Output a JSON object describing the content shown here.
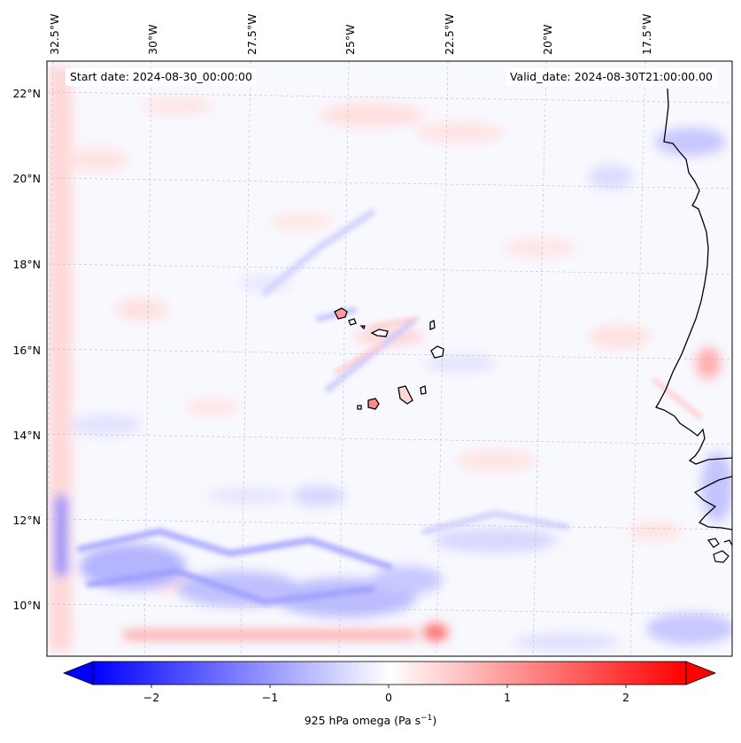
{
  "map": {
    "start_date": "Start date: 2024-08-30_00:00:00",
    "valid_date": "Valid_date: 2024-08-30T21:00:00.00",
    "lon_labels": [
      "32.5°W",
      "30°W",
      "27.5°W",
      "25°W",
      "22.5°W",
      "20°W",
      "17.5°W"
    ],
    "lat_labels": [
      "22°N",
      "20°N",
      "18°N",
      "16°N",
      "14°N",
      "12°N",
      "10°N"
    ],
    "field": "925 hPa omega",
    "colormap": "bwr",
    "colors": {
      "negative": "#0000ff",
      "neutral": "#ffffff",
      "positive": "#ff0000"
    }
  },
  "colorbar": {
    "ticks": [
      "−2",
      "−1",
      "0",
      "1",
      "2"
    ],
    "range": [
      -2.6,
      2.6
    ],
    "label_main": "925 hPa omega (Pa s",
    "label_exp": "−1",
    "label_end": ")"
  }
}
